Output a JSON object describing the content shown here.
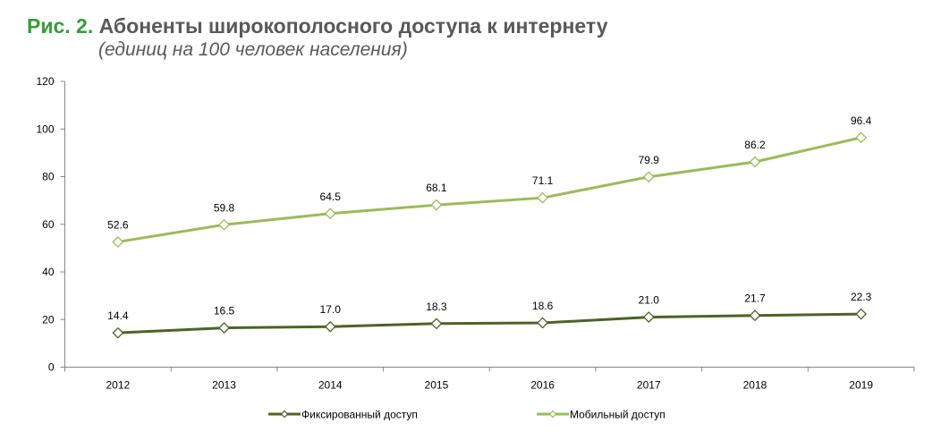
{
  "chart_data": {
    "type": "line",
    "title_prefix": "Рис. 2.",
    "title": "Абоненты широкополосного доступа к интернету",
    "subtitle": "(единиц на 100 человек населения)",
    "categories": [
      "2012",
      "2013",
      "2014",
      "2015",
      "2016",
      "2017",
      "2018",
      "2019"
    ],
    "ylim": [
      0,
      120
    ],
    "yticks": [
      0,
      20,
      40,
      60,
      80,
      100,
      120
    ],
    "grid": false,
    "legend_position": "bottom",
    "series": [
      {
        "name": "Фиксированный доступ",
        "color": "#4f6228",
        "marker": "diamond-open",
        "values": [
          14.4,
          16.5,
          17.0,
          18.3,
          18.6,
          21.0,
          21.7,
          22.3
        ],
        "labels": [
          "14.4",
          "16.5",
          "17.0",
          "18.3",
          "18.6",
          "21.0",
          "21.7",
          "22.3"
        ]
      },
      {
        "name": "Мобильный доступ",
        "color": "#9bbb59",
        "marker": "diamond-open",
        "values": [
          52.6,
          59.8,
          64.5,
          68.1,
          71.1,
          79.9,
          86.2,
          96.4
        ],
        "labels": [
          "52.6",
          "59.8",
          "64.5",
          "68.1",
          "71.1",
          "79.9",
          "86.2",
          "96.4"
        ]
      }
    ]
  }
}
